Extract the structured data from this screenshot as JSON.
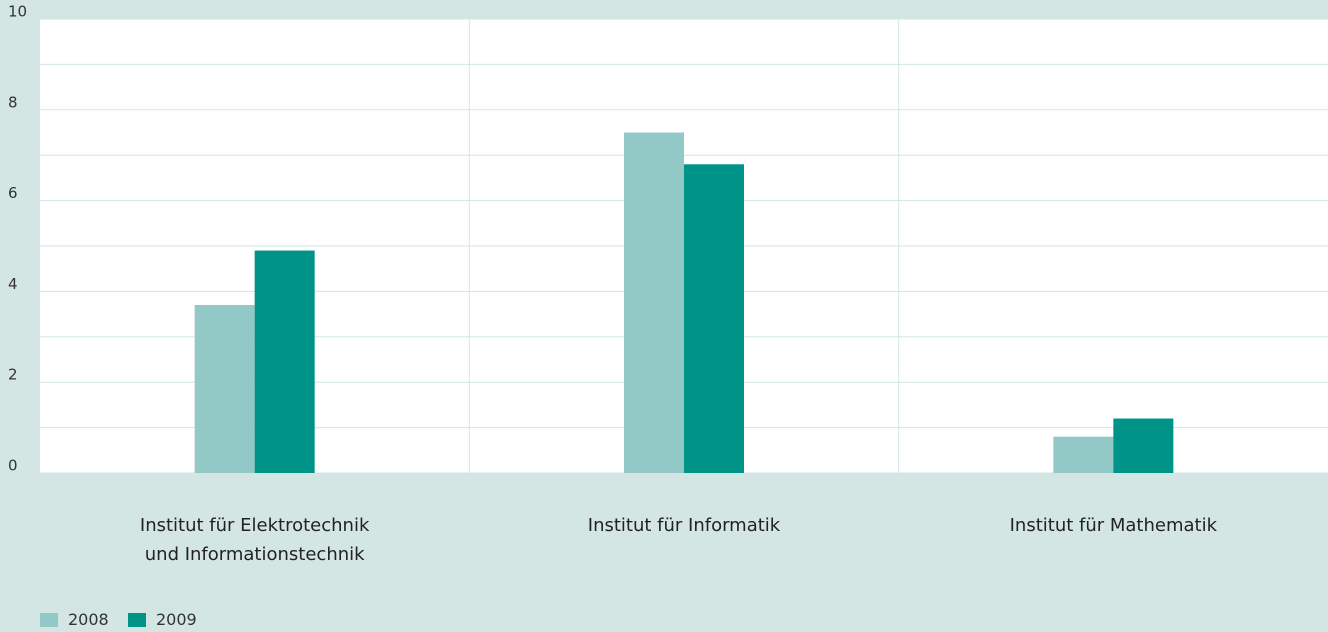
{
  "chart_data": {
    "type": "bar",
    "categories": [
      "Institut für Elektrotechnik und Informationstechnik",
      "Institut für Informatik",
      "Institut für Mathematik"
    ],
    "series": [
      {
        "name": "2008",
        "color": "#92c8c5",
        "values": [
          3.7,
          7.5,
          0.8
        ]
      },
      {
        "name": "2009",
        "color": "#009488",
        "values": [
          4.9,
          6.8,
          1.2
        ]
      }
    ],
    "ylim": [
      0,
      10
    ],
    "yticks": [
      0,
      2,
      4,
      6,
      8,
      10
    ],
    "yticks_minor": [
      1,
      3,
      5,
      7,
      9
    ],
    "grid": true,
    "legend": "bottom-left"
  }
}
